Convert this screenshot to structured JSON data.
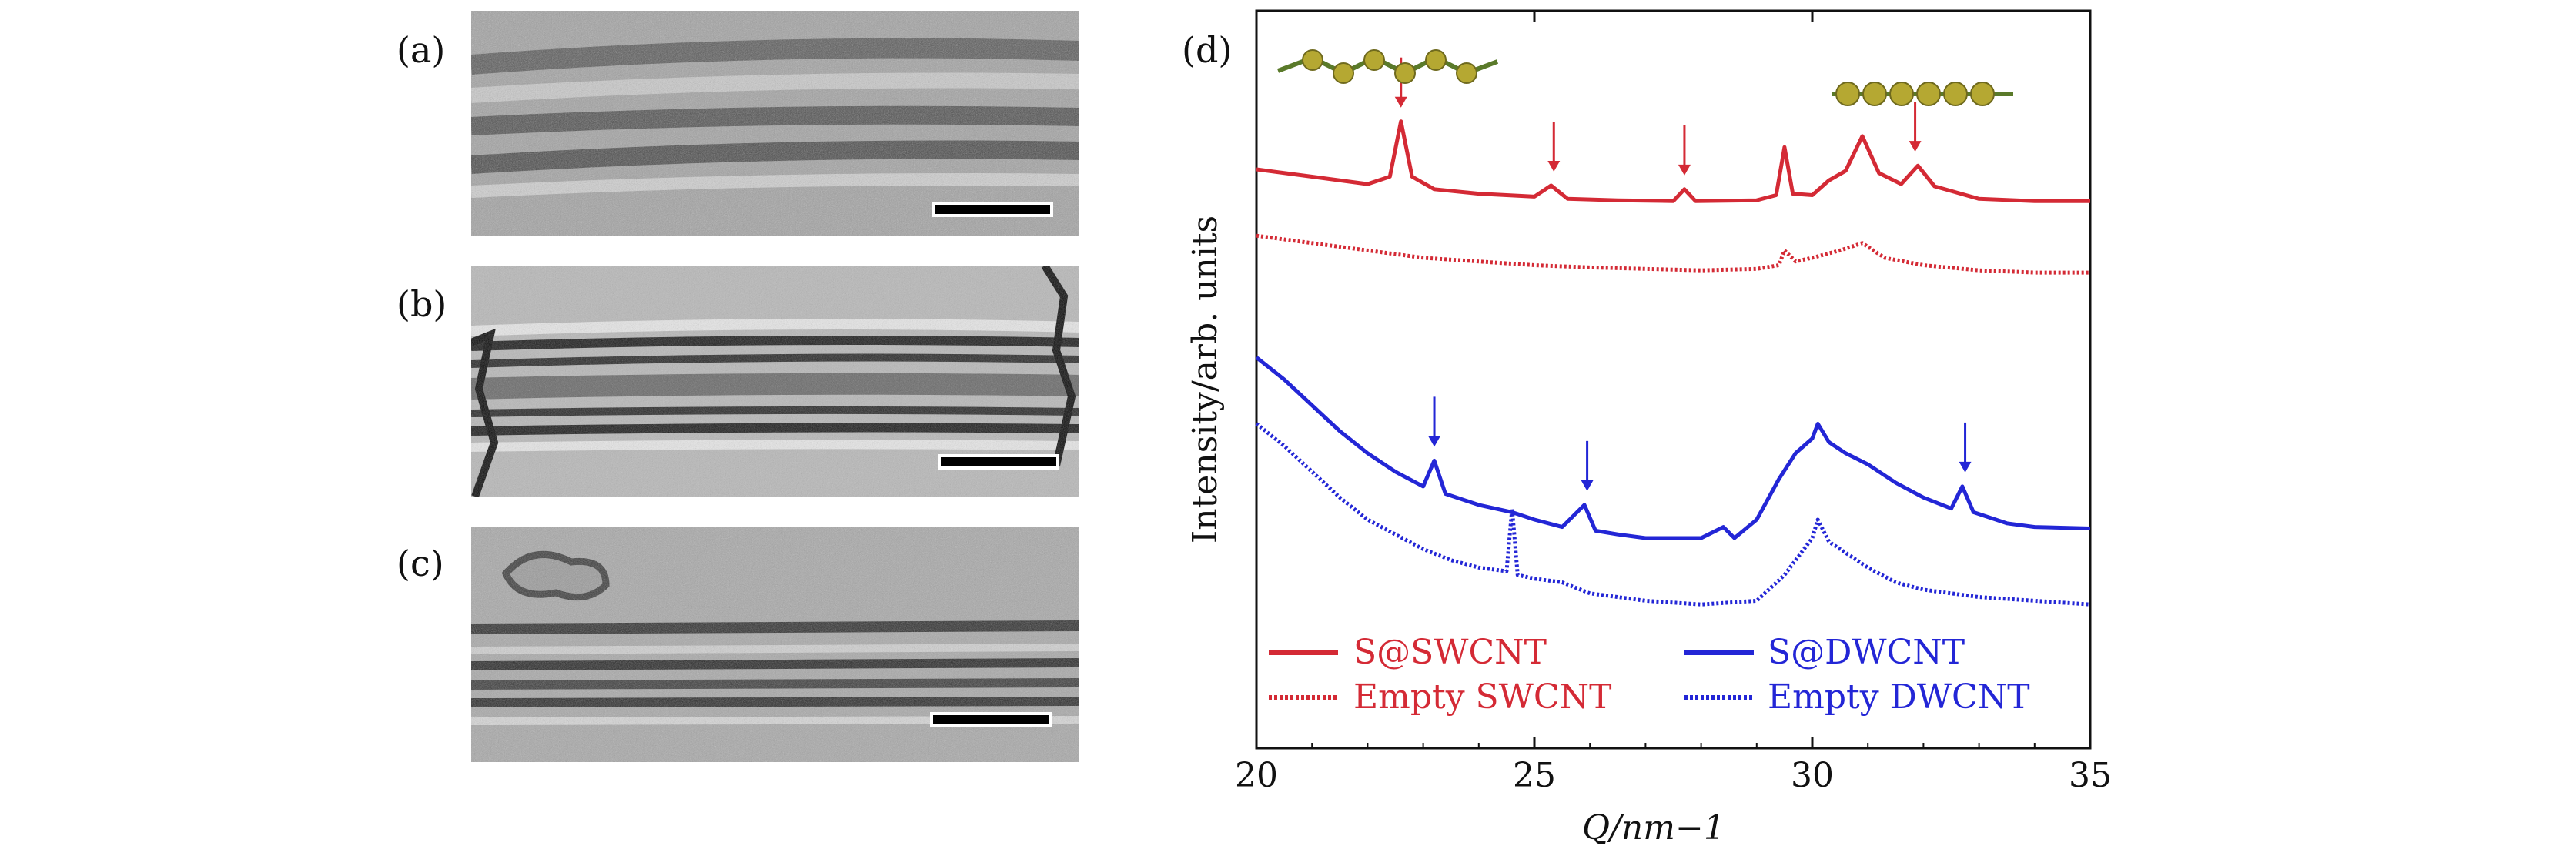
{
  "panels": {
    "a": "(a)",
    "b": "(b)",
    "c": "(c)",
    "d": "(d)"
  },
  "chart_data": {
    "type": "line",
    "xlabel": "Q/nm−1",
    "ylabel": "Intensity/arb. units",
    "xlim": [
      20,
      35
    ],
    "xticks": [
      20,
      25,
      30,
      35
    ],
    "y_ticks_shown": false,
    "grid": false,
    "legend_position": "bottom",
    "colors": {
      "red": "#d42a35",
      "blue": "#2326d6"
    },
    "series": [
      {
        "name": "S@SWCNT",
        "color": "#d42a35",
        "style": "solid",
        "x": [
          20,
          21,
          22,
          22.4,
          22.6,
          22.8,
          23.2,
          24,
          25,
          25.3,
          25.6,
          26.5,
          27.5,
          27.7,
          27.9,
          29,
          29.35,
          29.5,
          29.65,
          30,
          30.3,
          30.6,
          30.9,
          31.2,
          31.6,
          31.9,
          32.2,
          33,
          34,
          35
        ],
        "y": [
          0.785,
          0.775,
          0.765,
          0.775,
          0.85,
          0.775,
          0.758,
          0.752,
          0.748,
          0.763,
          0.745,
          0.743,
          0.742,
          0.758,
          0.742,
          0.743,
          0.75,
          0.815,
          0.752,
          0.75,
          0.77,
          0.783,
          0.83,
          0.78,
          0.765,
          0.79,
          0.762,
          0.745,
          0.742,
          0.742
        ]
      },
      {
        "name": "Empty SWCNT",
        "color": "#d42a35",
        "style": "dotted",
        "x": [
          20,
          21,
          22,
          23,
          24,
          25,
          26,
          27,
          28,
          29,
          29.4,
          29.5,
          29.7,
          30,
          30.5,
          30.9,
          31.3,
          32,
          33,
          34,
          35
        ],
        "y": [
          0.695,
          0.685,
          0.675,
          0.665,
          0.66,
          0.655,
          0.652,
          0.65,
          0.648,
          0.65,
          0.655,
          0.675,
          0.66,
          0.665,
          0.675,
          0.685,
          0.665,
          0.655,
          0.648,
          0.645,
          0.645
        ]
      },
      {
        "name": "S@DWCNT",
        "color": "#2326d6",
        "style": "solid",
        "x": [
          20,
          20.5,
          21,
          21.5,
          22,
          22.5,
          23,
          23.2,
          23.4,
          24,
          24.6,
          25,
          25.5,
          25.9,
          26.1,
          26.5,
          27,
          28,
          28.4,
          28.6,
          29,
          29.4,
          29.7,
          30,
          30.1,
          30.3,
          30.6,
          31,
          31.5,
          32,
          32.5,
          32.7,
          32.9,
          33.5,
          34,
          35
        ],
        "y": [
          0.53,
          0.5,
          0.465,
          0.43,
          0.4,
          0.375,
          0.355,
          0.39,
          0.345,
          0.33,
          0.32,
          0.31,
          0.3,
          0.33,
          0.295,
          0.29,
          0.285,
          0.285,
          0.3,
          0.285,
          0.31,
          0.365,
          0.4,
          0.42,
          0.44,
          0.415,
          0.4,
          0.385,
          0.36,
          0.34,
          0.325,
          0.355,
          0.32,
          0.305,
          0.3,
          0.298
        ]
      },
      {
        "name": "Empty DWCNT",
        "color": "#2326d6",
        "style": "dotted",
        "x": [
          20,
          20.5,
          21,
          21.5,
          22,
          22.5,
          23,
          23.5,
          24,
          24.5,
          24.6,
          24.7,
          25,
          25.5,
          26,
          27,
          28,
          29,
          29.5,
          29.8,
          30,
          30.1,
          30.3,
          30.6,
          31,
          31.5,
          32,
          33,
          34,
          35
        ],
        "y": [
          0.44,
          0.41,
          0.375,
          0.34,
          0.31,
          0.29,
          0.27,
          0.255,
          0.245,
          0.24,
          0.325,
          0.235,
          0.23,
          0.225,
          0.21,
          0.2,
          0.195,
          0.2,
          0.235,
          0.265,
          0.285,
          0.31,
          0.28,
          0.265,
          0.245,
          0.225,
          0.215,
          0.205,
          0.2,
          0.195
        ]
      }
    ],
    "arrows": [
      {
        "color": "#d42a35",
        "x": [
          22.6,
          25.35,
          27.7,
          31.85
        ]
      },
      {
        "color": "#2326d6",
        "x": [
          23.2,
          25.95,
          32.75
        ]
      }
    ],
    "legend": {
      "s_swcnt": "S@SWCNT",
      "empty_swcnt": "Empty SWCNT",
      "s_dwcnt": "S@DWCNT",
      "empty_dwcnt": "Empty DWCNT"
    },
    "tick_labels": [
      "20",
      "25",
      "30",
      "35"
    ]
  }
}
